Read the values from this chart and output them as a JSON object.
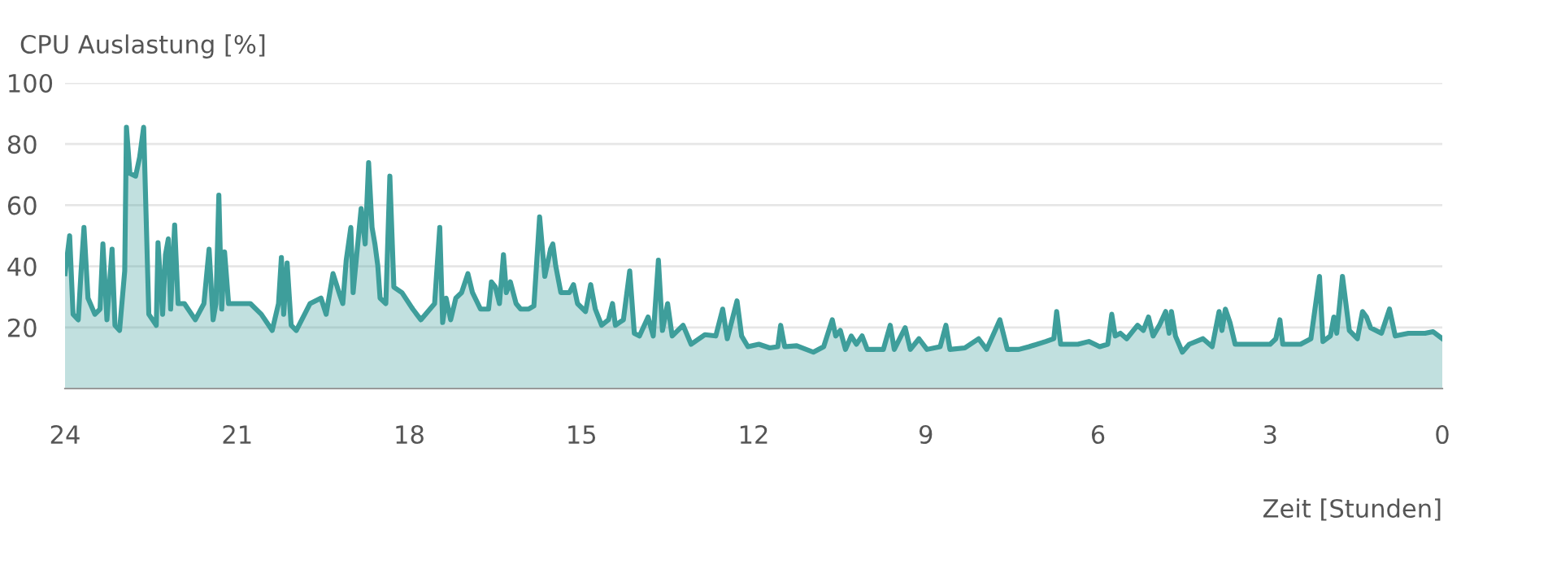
{
  "chart_data": {
    "type": "area",
    "ylabel": "CPU Auslastung [%]",
    "xlabel": "Zeit [Stunden]",
    "xlim": [
      24,
      0
    ],
    "xticks": [
      24,
      21,
      18,
      15,
      12,
      9,
      6,
      3,
      0
    ],
    "ylim": [
      0,
      100
    ],
    "yticks": [
      20,
      40,
      60,
      80,
      100
    ],
    "grid": "y",
    "legend": false,
    "marker": "none",
    "line_style": "solid",
    "series": [
      {
        "color": "#3e9e9b",
        "x": [
          24,
          23.92,
          23.86,
          23.77,
          23.72,
          23.67,
          23.6,
          23.48,
          23.39,
          23.34,
          23.27,
          23.18,
          23.13,
          23.05,
          22.96,
          22.93,
          22.87,
          22.77,
          22.7,
          22.63,
          22.54,
          22.41,
          22.38,
          22.3,
          22.25,
          22.2,
          22.16,
          22.09,
          22.03,
          21.92,
          21.73,
          21.58,
          21.49,
          21.42,
          21.37,
          21.32,
          21.27,
          21.22,
          21.15,
          20.77,
          20.58,
          20.39,
          20.28,
          20.23,
          20.19,
          20.13,
          20.06,
          19.97,
          19.73,
          19.54,
          19.45,
          19.33,
          19.21,
          19.16,
          19.1,
          19.02,
          18.98,
          18.84,
          18.77,
          18.71,
          18.65,
          18.6,
          18.55,
          18.51,
          18.41,
          18.34,
          18.27,
          18.13,
          17.94,
          17.8,
          17.56,
          17.47,
          17.42,
          17.36,
          17.28,
          17.19,
          17.09,
          16.98,
          16.9,
          16.76,
          16.62,
          16.57,
          16.5,
          16.43,
          16.36,
          16.31,
          16.24,
          16.14,
          16.06,
          15.92,
          15.83,
          15.73,
          15.64,
          15.54,
          15.5,
          15.45,
          15.36,
          15.21,
          15.14,
          15.07,
          14.93,
          14.84,
          14.76,
          14.65,
          14.53,
          14.46,
          14.41,
          14.27,
          14.16,
          14.08,
          13.99,
          13.84,
          13.75,
          13.66,
          13.59,
          13.5,
          13.42,
          13.23,
          13.09,
          12.85,
          12.66,
          12.54,
          12.46,
          12.29,
          12.21,
          12.1,
          11.91,
          11.72,
          11.58,
          11.53,
          11.46,
          11.25,
          10.96,
          10.78,
          10.63,
          10.57,
          10.49,
          10.4,
          10.3,
          10.21,
          10.11,
          10.02,
          9.74,
          9.62,
          9.55,
          9.36,
          9.27,
          9.12,
          8.98,
          8.75,
          8.65,
          8.58,
          8.32,
          8.08,
          7.94,
          7.71,
          7.58,
          7.38,
          7.2,
          6.91,
          6.77,
          6.72,
          6.65,
          6.35,
          6.16,
          5.97,
          5.83,
          5.76,
          5.7,
          5.61,
          5.5,
          5.31,
          5.21,
          5.12,
          5.04,
          4.93,
          4.82,
          4.76,
          4.72,
          4.65,
          4.53,
          4.41,
          4.17,
          4.01,
          3.89,
          3.84,
          3.78,
          3.7,
          3.61,
          3.32,
          3.0,
          2.9,
          2.83,
          2.78,
          2.47,
          2.29,
          2.14,
          2.08,
          1.95,
          1.89,
          1.84,
          1.74,
          1.62,
          1.48,
          1.39,
          1.32,
          1.25,
          1.06,
          0.92,
          0.82,
          0.59,
          0.3,
          0.16,
          0
        ],
        "values": [
          37.6,
          50,
          24.3,
          22.5,
          38.5,
          52.7,
          29.6,
          24.3,
          26,
          47.3,
          22.5,
          45.6,
          20.7,
          19,
          38.5,
          85.5,
          70.4,
          69.5,
          75.7,
          85.5,
          24.3,
          20.7,
          47.7,
          24.3,
          43.8,
          49,
          26,
          53.5,
          27.8,
          27.8,
          22.5,
          27.8,
          45.6,
          22.5,
          27.8,
          63.3,
          26,
          44.7,
          27.8,
          27.8,
          24.3,
          19,
          27.8,
          42.9,
          24.3,
          41.1,
          20.7,
          19,
          27.8,
          29.6,
          24.3,
          37.6,
          30.5,
          27.8,
          42,
          52.7,
          31.4,
          58.9,
          47.3,
          73.9,
          52.7,
          47.3,
          40.2,
          29.6,
          27.8,
          69.5,
          33.2,
          31.4,
          26,
          22.5,
          27.8,
          52.7,
          21.6,
          29.6,
          22.5,
          29.6,
          31.4,
          37.6,
          31.4,
          26,
          26,
          34.9,
          33.2,
          27.8,
          43.8,
          31.4,
          34.9,
          27.8,
          26,
          26,
          27,
          56.2,
          36.7,
          45.6,
          47.3,
          40.2,
          31.4,
          31.4,
          34,
          27.8,
          25.2,
          34,
          26,
          20.7,
          22.5,
          27.8,
          20.7,
          22.5,
          38.5,
          18.1,
          17.2,
          23.4,
          17.2,
          42,
          19,
          27.8,
          17.2,
          20.7,
          14.5,
          17.6,
          17.2,
          26,
          16.3,
          28.7,
          17.2,
          13.7,
          14.5,
          13.3,
          13.7,
          20.7,
          13.7,
          14,
          11.9,
          13.7,
          22.5,
          17.2,
          19,
          12.8,
          17.2,
          14.5,
          17.2,
          12.8,
          12.8,
          20.7,
          12.8,
          19.9,
          12.8,
          16.3,
          12.8,
          13.7,
          20.7,
          12.8,
          13.3,
          16.3,
          12.8,
          22.5,
          12.8,
          12.8,
          13.7,
          15.4,
          16.3,
          25.2,
          14.5,
          14.5,
          15.4,
          13.7,
          14.5,
          24.3,
          17.2,
          18.1,
          16.3,
          20.7,
          19,
          23.4,
          17.2,
          20.7,
          25.2,
          18.1,
          25.2,
          17.2,
          11.9,
          14.5,
          16.3,
          13.7,
          25.2,
          19,
          26,
          21.6,
          14.5,
          14.5,
          14.5,
          16.3,
          22.5,
          14.5,
          14.5,
          16.3,
          36.7,
          15.4,
          17.2,
          23.4,
          18.1,
          36.7,
          19,
          16.3,
          25.2,
          23.4,
          19.9,
          18.1,
          26,
          17.2,
          18.1,
          18.1,
          18.6,
          16.3
        ]
      }
    ]
  }
}
